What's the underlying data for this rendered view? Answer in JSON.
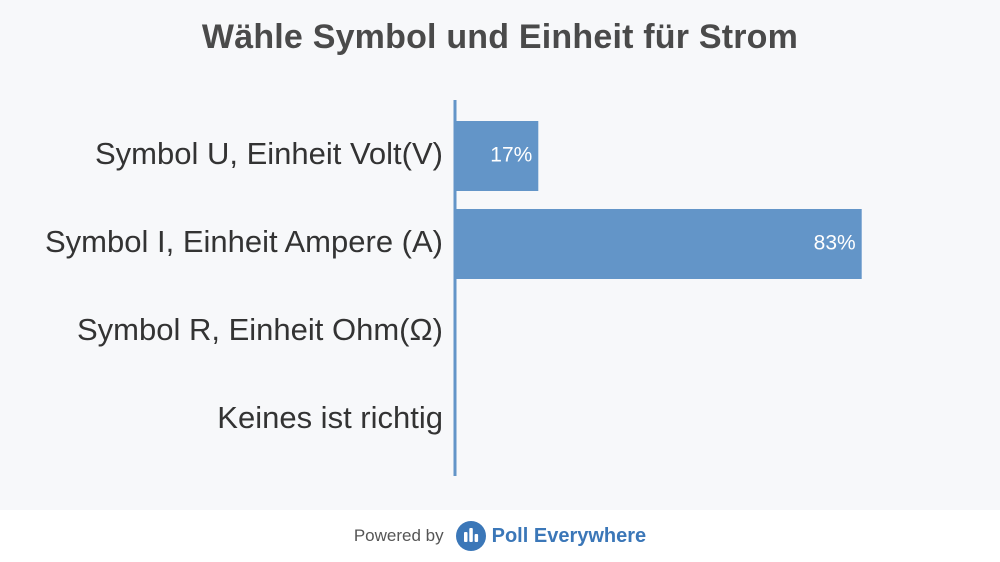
{
  "title": "Wähle Symbol und Einheit für Strom",
  "chart_data": {
    "type": "bar",
    "orientation": "horizontal",
    "categories": [
      "Symbol U, Einheit Volt(V)",
      "Symbol I, Einheit Ampere (A)",
      "Symbol R, Einheit Ohm(Ω)",
      "Keines ist richtig"
    ],
    "values": [
      17,
      83,
      0,
      0
    ],
    "value_labels": [
      "17%",
      "83%",
      "",
      ""
    ],
    "xlim": [
      0,
      100
    ],
    "unit": "%",
    "bar_color": "#6395c8",
    "axis_color": "#6395c8",
    "grid": false
  },
  "footer": {
    "powered_by": "Powered by",
    "brand": "Poll Everywhere",
    "brand_color": "#3b77b8",
    "logo_icon": "poll-everywhere-logo-icon"
  }
}
